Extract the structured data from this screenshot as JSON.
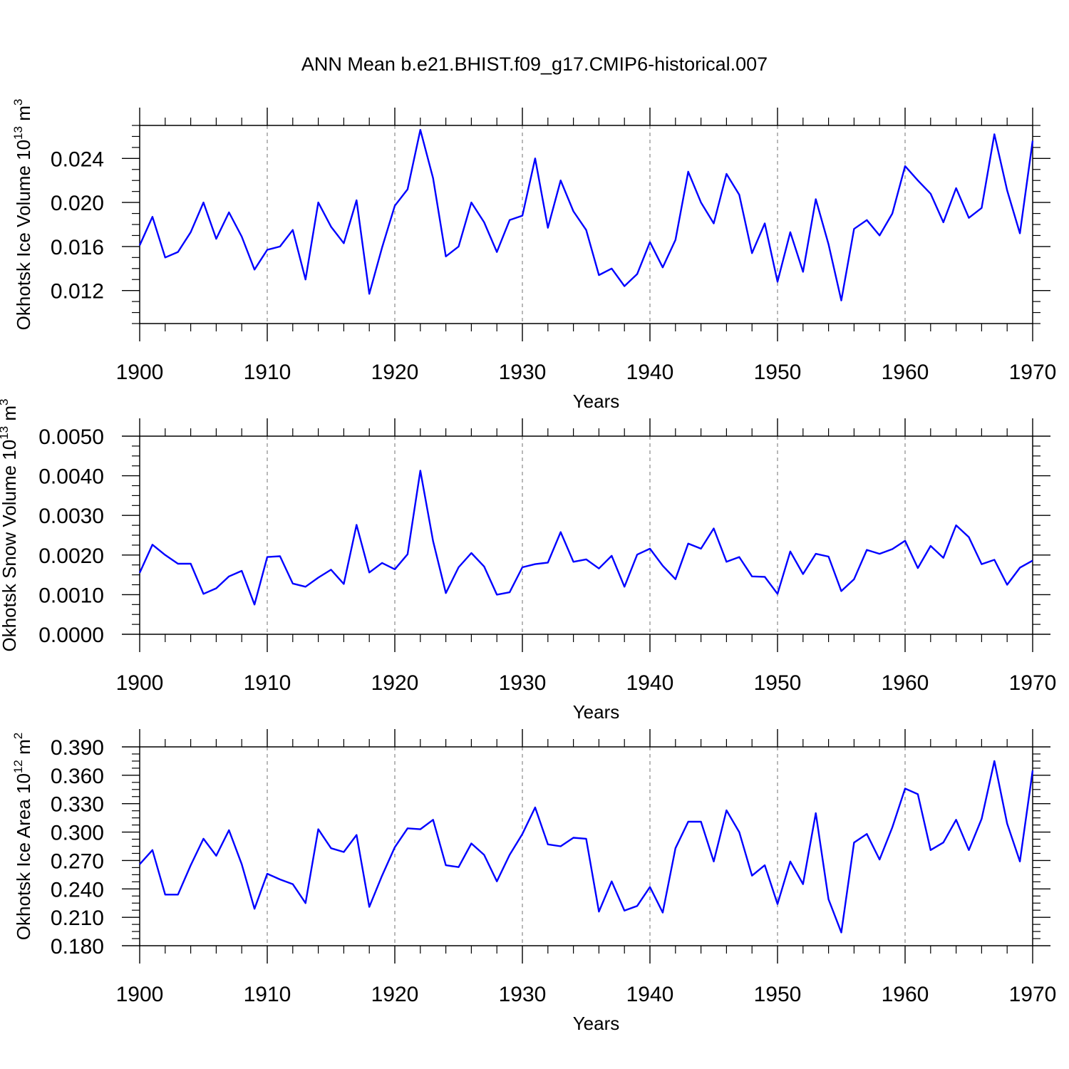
{
  "figure_title": "ANN Mean b.e21.BHIST.f09_g17.CMIP6-historical.007",
  "line_color": "#0000ff",
  "grid_color": "#888888",
  "chart_data": [
    {
      "type": "line",
      "title": "ANN Mean b.e21.BHIST.f09_g17.CMIP6-historical.007",
      "xlabel": "Years",
      "ylabel": {
        "text": "Okhotsk Ice Volume 10",
        "sup": "13",
        "unit": " m",
        "unit_sup": "3"
      },
      "xlim": [
        1900,
        1970
      ],
      "ylim": [
        0.009,
        0.027
      ],
      "xticks": [
        1900,
        1910,
        1920,
        1930,
        1940,
        1950,
        1960,
        1970
      ],
      "xtick_labels": [
        "1900",
        "1910",
        "1920",
        "1930",
        "1940",
        "1950",
        "1960",
        "1970"
      ],
      "yticks": [
        0.012,
        0.016,
        0.02,
        0.024
      ],
      "ytick_labels": [
        "0.012",
        "0.016",
        "0.020",
        "0.024"
      ],
      "grid": "x-dashed",
      "x": [
        1900,
        1901,
        1902,
        1903,
        1904,
        1905,
        1906,
        1907,
        1908,
        1909,
        1910,
        1911,
        1912,
        1913,
        1914,
        1915,
        1916,
        1917,
        1918,
        1919,
        1920,
        1921,
        1922,
        1923,
        1924,
        1925,
        1926,
        1927,
        1928,
        1929,
        1930,
        1931,
        1932,
        1933,
        1934,
        1935,
        1936,
        1937,
        1938,
        1939,
        1940,
        1941,
        1942,
        1943,
        1944,
        1945,
        1946,
        1947,
        1948,
        1949,
        1950,
        1951,
        1952,
        1953,
        1954,
        1955,
        1956,
        1957,
        1958,
        1959,
        1960,
        1961,
        1962,
        1963,
        1964,
        1965,
        1966,
        1967,
        1968,
        1969,
        1970
      ],
      "values": [
        0.0161,
        0.0187,
        0.015,
        0.0155,
        0.0173,
        0.02,
        0.0167,
        0.0191,
        0.0169,
        0.0139,
        0.0157,
        0.016,
        0.0175,
        0.013,
        0.02,
        0.0178,
        0.0163,
        0.0202,
        0.0117,
        0.0159,
        0.0197,
        0.0212,
        0.0266,
        0.0222,
        0.0151,
        0.016,
        0.02,
        0.0182,
        0.0155,
        0.0184,
        0.0188,
        0.024,
        0.0177,
        0.022,
        0.0192,
        0.0175,
        0.0134,
        0.014,
        0.0124,
        0.0135,
        0.0164,
        0.0141,
        0.0166,
        0.0228,
        0.02,
        0.0181,
        0.0226,
        0.0207,
        0.0154,
        0.0181,
        0.0128,
        0.0173,
        0.0137,
        0.0203,
        0.0162,
        0.0111,
        0.0176,
        0.0184,
        0.017,
        0.019,
        0.0233,
        0.022,
        0.0208,
        0.0182,
        0.0213,
        0.0186,
        0.0195,
        0.0262,
        0.0211,
        0.0172,
        0.0256
      ]
    },
    {
      "type": "line",
      "xlabel": "Years",
      "ylabel": {
        "text": "Okhotsk Snow Volume 10",
        "sup": "13",
        "unit": " m",
        "unit_sup": "3"
      },
      "xlim": [
        1900,
        1970
      ],
      "ylim": [
        0.0,
        0.005
      ],
      "xticks": [
        1900,
        1910,
        1920,
        1930,
        1940,
        1950,
        1960,
        1970
      ],
      "xtick_labels": [
        "1900",
        "1910",
        "1920",
        "1930",
        "1940",
        "1950",
        "1960",
        "1970"
      ],
      "yticks": [
        0.0,
        0.001,
        0.002,
        0.003,
        0.004,
        0.005
      ],
      "ytick_labels": [
        "0.0000",
        "0.0010",
        "0.0020",
        "0.0030",
        "0.0040",
        "0.0050"
      ],
      "grid": "x-dashed",
      "x": [
        1900,
        1901,
        1902,
        1903,
        1904,
        1905,
        1906,
        1907,
        1908,
        1909,
        1910,
        1911,
        1912,
        1913,
        1914,
        1915,
        1916,
        1917,
        1918,
        1919,
        1920,
        1921,
        1922,
        1923,
        1924,
        1925,
        1926,
        1927,
        1928,
        1929,
        1930,
        1931,
        1932,
        1933,
        1934,
        1935,
        1936,
        1937,
        1938,
        1939,
        1940,
        1941,
        1942,
        1943,
        1944,
        1945,
        1946,
        1947,
        1948,
        1949,
        1950,
        1951,
        1952,
        1953,
        1954,
        1955,
        1956,
        1957,
        1958,
        1959,
        1960,
        1961,
        1962,
        1963,
        1964,
        1965,
        1966,
        1967,
        1968,
        1969,
        1970
      ],
      "values": [
        0.00155,
        0.00226,
        0.002,
        0.00178,
        0.00178,
        0.00102,
        0.00116,
        0.00146,
        0.0016,
        0.00075,
        0.00195,
        0.00197,
        0.00128,
        0.0012,
        0.00143,
        0.00163,
        0.00127,
        0.00276,
        0.00156,
        0.0018,
        0.00164,
        0.00202,
        0.00413,
        0.00235,
        0.00104,
        0.00169,
        0.00205,
        0.00171,
        0.001,
        0.00106,
        0.00169,
        0.00177,
        0.00181,
        0.00258,
        0.00183,
        0.00189,
        0.00166,
        0.00198,
        0.0012,
        0.00201,
        0.00216,
        0.00173,
        0.00139,
        0.00229,
        0.00216,
        0.00267,
        0.00183,
        0.00195,
        0.00146,
        0.00145,
        0.00102,
        0.00209,
        0.00152,
        0.00203,
        0.00196,
        0.00109,
        0.00139,
        0.00213,
        0.00203,
        0.00215,
        0.00236,
        0.00167,
        0.00223,
        0.00193,
        0.00275,
        0.00245,
        0.00177,
        0.00188,
        0.00125,
        0.00168,
        0.00186
      ]
    },
    {
      "type": "line",
      "xlabel": "Years",
      "ylabel": {
        "text": "Okhotsk Ice Area 10",
        "sup": "12",
        "unit": " m",
        "unit_sup": "2"
      },
      "xlim": [
        1900,
        1970
      ],
      "ylim": [
        0.18,
        0.39
      ],
      "xticks": [
        1900,
        1910,
        1920,
        1930,
        1940,
        1950,
        1960,
        1970
      ],
      "xtick_labels": [
        "1900",
        "1910",
        "1920",
        "1930",
        "1940",
        "1950",
        "1960",
        "1970"
      ],
      "yticks": [
        0.18,
        0.21,
        0.24,
        0.27,
        0.3,
        0.33,
        0.36,
        0.39
      ],
      "ytick_labels": [
        "0.180",
        "0.210",
        "0.240",
        "0.270",
        "0.300",
        "0.330",
        "0.360",
        "0.390"
      ],
      "grid": "x-dashed",
      "x": [
        1900,
        1901,
        1902,
        1903,
        1904,
        1905,
        1906,
        1907,
        1908,
        1909,
        1910,
        1911,
        1912,
        1913,
        1914,
        1915,
        1916,
        1917,
        1918,
        1919,
        1920,
        1921,
        1922,
        1923,
        1924,
        1925,
        1926,
        1927,
        1928,
        1929,
        1930,
        1931,
        1932,
        1933,
        1934,
        1935,
        1936,
        1937,
        1938,
        1939,
        1940,
        1941,
        1942,
        1943,
        1944,
        1945,
        1946,
        1947,
        1948,
        1949,
        1950,
        1951,
        1952,
        1953,
        1954,
        1955,
        1956,
        1957,
        1958,
        1959,
        1960,
        1961,
        1962,
        1963,
        1964,
        1965,
        1966,
        1967,
        1968,
        1969,
        1970
      ],
      "values": [
        0.266,
        0.281,
        0.234,
        0.234,
        0.265,
        0.293,
        0.275,
        0.302,
        0.266,
        0.219,
        0.256,
        0.25,
        0.245,
        0.225,
        0.303,
        0.283,
        0.279,
        0.297,
        0.221,
        0.254,
        0.284,
        0.304,
        0.303,
        0.313,
        0.265,
        0.263,
        0.288,
        0.276,
        0.248,
        0.276,
        0.298,
        0.326,
        0.287,
        0.285,
        0.294,
        0.293,
        0.216,
        0.248,
        0.217,
        0.222,
        0.242,
        0.215,
        0.283,
        0.311,
        0.311,
        0.269,
        0.323,
        0.3,
        0.254,
        0.265,
        0.224,
        0.269,
        0.245,
        0.32,
        0.229,
        0.194,
        0.289,
        0.298,
        0.271,
        0.305,
        0.346,
        0.34,
        0.281,
        0.289,
        0.313,
        0.281,
        0.314,
        0.375,
        0.309,
        0.269,
        0.365
      ]
    }
  ]
}
